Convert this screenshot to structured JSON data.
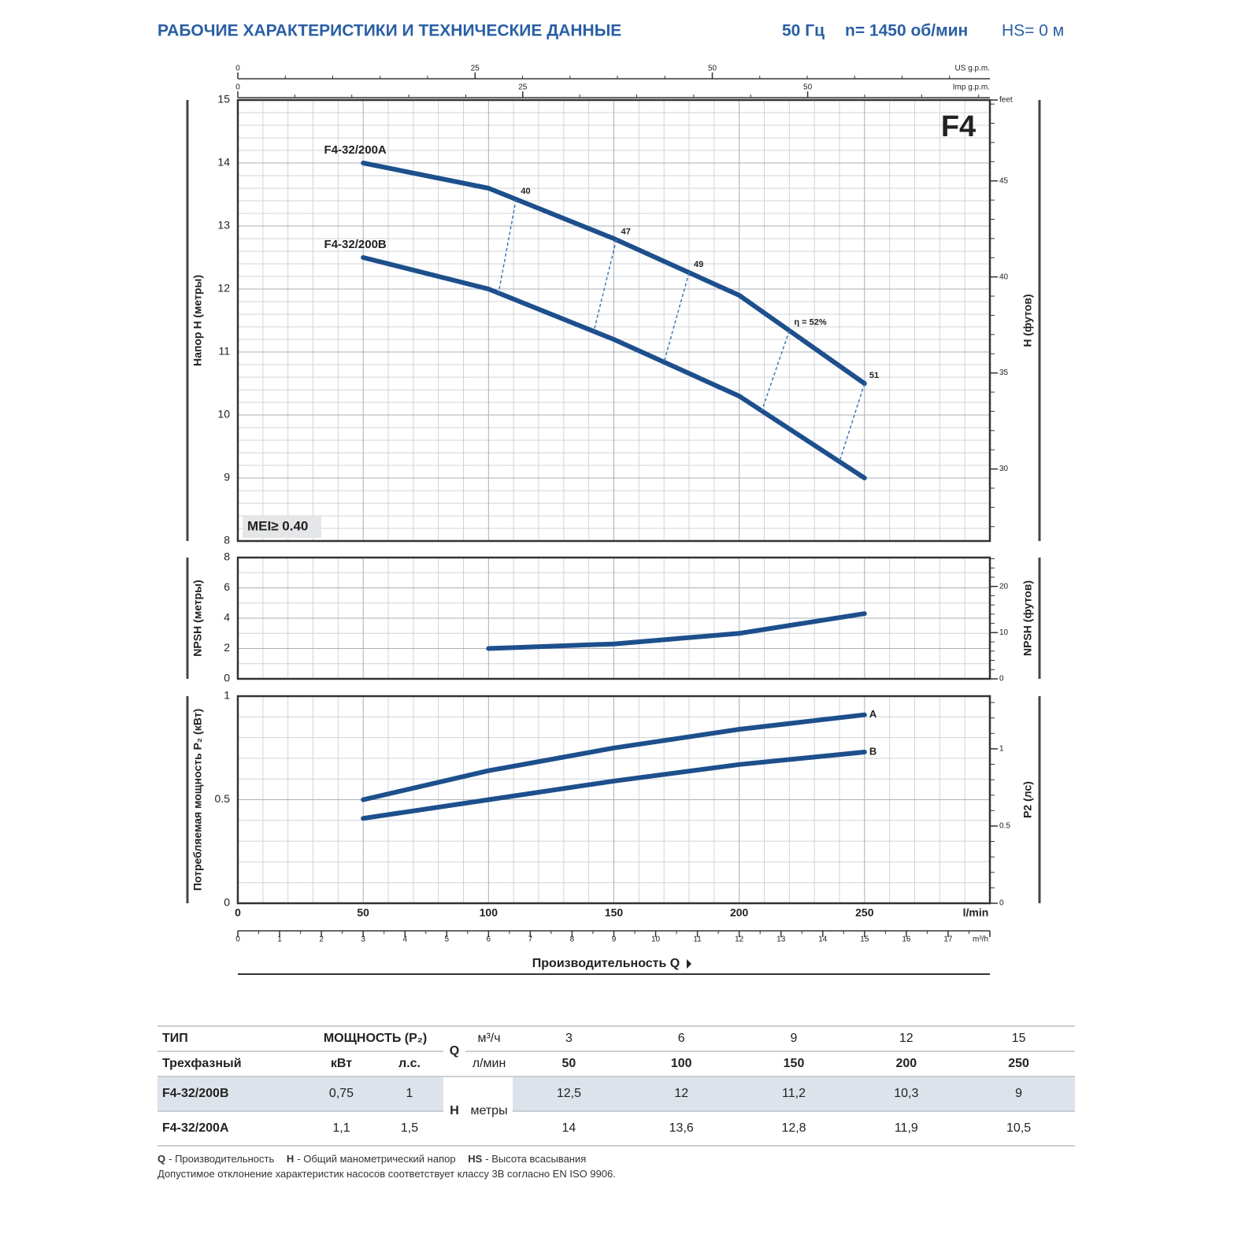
{
  "header": {
    "title": "РАБОЧИЕ ХАРАКТЕРИСТИКИ И ТЕХНИЧЕСКИЕ ДАННЫЕ",
    "frequency": "50 Гц",
    "speed": "n= 1450 об/мин",
    "suction": "HS= 0 м"
  },
  "chart_data": [
    {
      "type": "line",
      "badge": "F4",
      "annotation": "MEI≥ 0.40",
      "ylabel": "Напор H (метры)",
      "y2label": "H (футов)",
      "ylim": [
        8,
        15
      ],
      "yticks": [
        8,
        9,
        10,
        11,
        12,
        13,
        14,
        15
      ],
      "minor_divisions": 5,
      "grid": true,
      "y2lim": [
        26.25,
        49.21
      ],
      "y2ticks": [
        30,
        35,
        40,
        45,
        {
          "value": 49.21,
          "label": "feet"
        }
      ],
      "top_axes": [
        {
          "label": "US g.p.m.",
          "lim": [
            0,
            79.25
          ],
          "ticks": [
            0,
            25,
            50
          ]
        },
        {
          "label": "Imp g.p.m.",
          "lim": [
            0,
            65.99
          ],
          "ticks": [
            0,
            25,
            50
          ]
        }
      ],
      "legend": "start",
      "x": [
        50,
        100,
        150,
        200,
        250
      ],
      "series": [
        {
          "name": "F4-32/200A",
          "color": "#1d4f8c",
          "values": [
            14,
            13.6,
            12.8,
            11.9,
            10.5
          ]
        },
        {
          "name": "F4-32/200B",
          "color": "#1d4f8c",
          "values": [
            12.5,
            12,
            11.2,
            10.3,
            9
          ]
        }
      ],
      "efficiency": {
        "values": [
          40,
          47,
          49,
          52,
          51
        ],
        "value_labels": [
          "40",
          "47",
          "49",
          "η = 52%",
          "51"
        ],
        "x_a": [
          111,
          151,
          180,
          220,
          250
        ],
        "x_b": [
          104,
          142,
          170,
          209,
          240
        ]
      }
    },
    {
      "type": "line",
      "ylabel": "NPSH (метры)",
      "y2label": "NPSH (футов)",
      "ylim": [
        0,
        8
      ],
      "yticks": [
        0,
        2,
        4,
        6,
        8
      ],
      "minor_divisions": 2,
      "grid": true,
      "y2lim": [
        0,
        26.25
      ],
      "y2ticks": [
        0,
        10,
        20
      ],
      "x": [
        100,
        150,
        200,
        250
      ],
      "values": [
        2,
        2.3,
        3,
        4.3
      ],
      "color": "#1d4f8c"
    },
    {
      "type": "line",
      "ylabel": "Потребляемая мощность P₂ (кВт)",
      "y2label": "P2 (лс)",
      "ylim": [
        0,
        1
      ],
      "yticks": [
        0,
        0.5,
        1
      ],
      "minor_divisions": 5,
      "grid": true,
      "y2lim": [
        0,
        1.341
      ],
      "y2ticks": [
        0,
        0.5,
        1
      ],
      "legend": "end",
      "x": [
        50,
        100,
        150,
        200,
        250
      ],
      "series": [
        {
          "name": "A",
          "color": "#1d4f8c",
          "values": [
            0.5,
            0.64,
            0.75,
            0.84,
            0.91
          ]
        },
        {
          "name": "B",
          "color": "#1d4f8c",
          "values": [
            0.41,
            0.5,
            0.59,
            0.67,
            0.73
          ]
        }
      ],
      "xlabel": "Производительность Q",
      "xlim": [
        0,
        300
      ],
      "xticks": [
        0,
        50,
        100,
        150,
        200,
        250,
        {
          "value": 300,
          "label": "l/min"
        }
      ],
      "x_minor_divisions": 5,
      "x2lim": [
        0,
        18
      ],
      "x2ticks": [
        0,
        1,
        2,
        3,
        4,
        5,
        6,
        7,
        8,
        9,
        10,
        11,
        12,
        13,
        14,
        15,
        16,
        17,
        {
          "value": 18,
          "label": "m³/h"
        }
      ]
    }
  ],
  "table": {
    "type_header": "ТИП",
    "power_header": "МОЩНОСТЬ (P₂)",
    "phase": "Трехфазный",
    "kw_unit": "кВт",
    "hp_unit": "л.с.",
    "q_symbol": "Q",
    "q_unit_m3h": "м³/ч",
    "q_unit_lmin": "л/мин",
    "q_m3h": [
      "3",
      "6",
      "9",
      "12",
      "15"
    ],
    "q_lmin": [
      "50",
      "100",
      "150",
      "200",
      "250"
    ],
    "h_symbol": "H",
    "h_unit": "метры",
    "rows": [
      {
        "model": "F4-32/200B",
        "kw": "0,75",
        "hp": "1",
        "h": [
          "12,5",
          "12",
          "11,2",
          "10,3",
          "9"
        ]
      },
      {
        "model": "F4-32/200A",
        "kw": "1,1",
        "hp": "1,5",
        "h": [
          "14",
          "13,6",
          "12,8",
          "11,9",
          "10,5"
        ]
      }
    ]
  },
  "footnotes": {
    "legend": [
      {
        "symbol": "Q",
        "text": "- Производительность"
      },
      {
        "symbol": "H",
        "text": "- Общий манометрический напор"
      },
      {
        "symbol": "HS",
        "text": "- Высота всасывания"
      }
    ],
    "note": "Допустимое отклонение характеристик насосов соответствует классу 3B согласно EN ISO 9906."
  }
}
